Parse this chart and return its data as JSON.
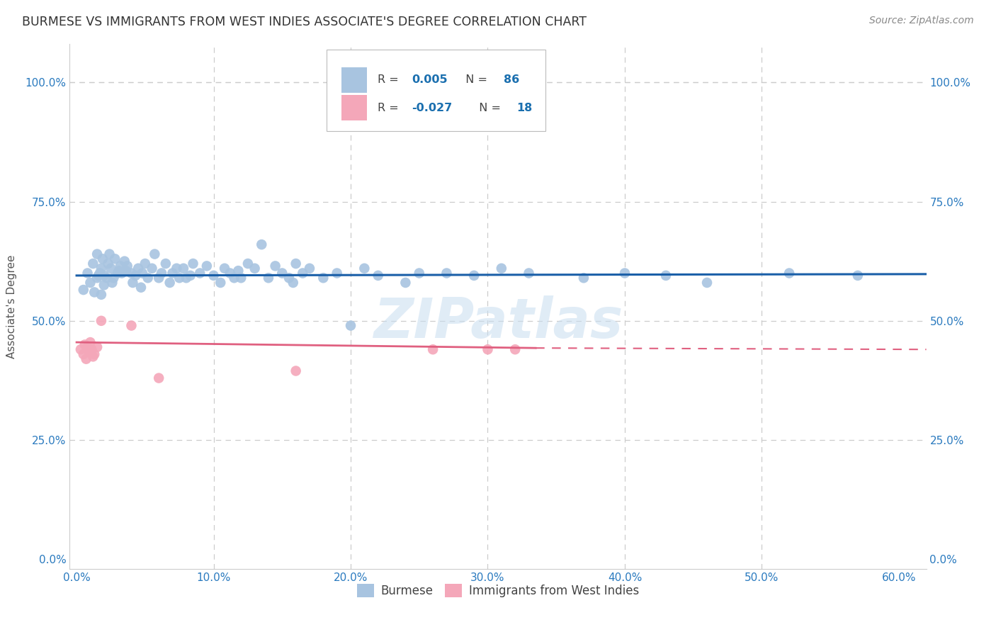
{
  "title": "BURMESE VS IMMIGRANTS FROM WEST INDIES ASSOCIATE'S DEGREE CORRELATION CHART",
  "source": "Source: ZipAtlas.com",
  "xlabel_ticks": [
    "0.0%",
    "10.0%",
    "20.0%",
    "30.0%",
    "40.0%",
    "50.0%",
    "60.0%"
  ],
  "xlabel_vals": [
    0.0,
    0.1,
    0.2,
    0.3,
    0.4,
    0.5,
    0.6
  ],
  "ylabel_ticks": [
    "0.0%",
    "25.0%",
    "50.0%",
    "75.0%",
    "100.0%"
  ],
  "ylabel_vals": [
    0.0,
    0.25,
    0.5,
    0.75,
    1.0
  ],
  "xlim": [
    -0.005,
    0.62
  ],
  "ylim": [
    -0.02,
    1.08
  ],
  "legend_r_blue": "0.005",
  "legend_n_blue": "86",
  "legend_r_pink": "-0.027",
  "legend_n_pink": "18",
  "blue_color": "#a8c4e0",
  "pink_color": "#f4a7b9",
  "line_blue": "#1a5fa8",
  "line_pink": "#e06080",
  "watermark": "ZIPatlas",
  "blue_line_y": 0.595,
  "pink_line_start_y": 0.455,
  "pink_line_end_y": 0.44,
  "blue_scatter_x": [
    0.005,
    0.008,
    0.01,
    0.012,
    0.013,
    0.015,
    0.015,
    0.016,
    0.017,
    0.018,
    0.018,
    0.019,
    0.02,
    0.02,
    0.022,
    0.023,
    0.024,
    0.025,
    0.026,
    0.027,
    0.028,
    0.03,
    0.031,
    0.032,
    0.033,
    0.035,
    0.036,
    0.037,
    0.04,
    0.041,
    0.043,
    0.045,
    0.047,
    0.048,
    0.05,
    0.052,
    0.055,
    0.057,
    0.06,
    0.062,
    0.065,
    0.068,
    0.07,
    0.073,
    0.075,
    0.078,
    0.08,
    0.083,
    0.085,
    0.09,
    0.095,
    0.1,
    0.105,
    0.108,
    0.112,
    0.115,
    0.118,
    0.12,
    0.125,
    0.13,
    0.135,
    0.14,
    0.145,
    0.15,
    0.155,
    0.158,
    0.16,
    0.165,
    0.17,
    0.18,
    0.19,
    0.2,
    0.21,
    0.22,
    0.24,
    0.25,
    0.27,
    0.29,
    0.31,
    0.33,
    0.37,
    0.4,
    0.43,
    0.46,
    0.52,
    0.57
  ],
  "blue_scatter_y": [
    0.565,
    0.6,
    0.58,
    0.62,
    0.56,
    0.59,
    0.64,
    0.595,
    0.6,
    0.555,
    0.61,
    0.63,
    0.575,
    0.595,
    0.59,
    0.62,
    0.64,
    0.61,
    0.58,
    0.59,
    0.63,
    0.6,
    0.605,
    0.615,
    0.6,
    0.625,
    0.605,
    0.615,
    0.6,
    0.58,
    0.595,
    0.61,
    0.57,
    0.6,
    0.62,
    0.59,
    0.61,
    0.64,
    0.59,
    0.6,
    0.62,
    0.58,
    0.6,
    0.61,
    0.59,
    0.61,
    0.59,
    0.595,
    0.62,
    0.6,
    0.615,
    0.595,
    0.58,
    0.61,
    0.6,
    0.59,
    0.605,
    0.59,
    0.62,
    0.61,
    0.66,
    0.59,
    0.615,
    0.6,
    0.59,
    0.58,
    0.62,
    0.6,
    0.61,
    0.59,
    0.6,
    0.49,
    0.61,
    0.595,
    0.58,
    0.6,
    0.6,
    0.595,
    0.61,
    0.6,
    0.59,
    0.6,
    0.595,
    0.58,
    0.6,
    0.595
  ],
  "pink_scatter_x": [
    0.003,
    0.005,
    0.006,
    0.007,
    0.008,
    0.009,
    0.01,
    0.011,
    0.012,
    0.013,
    0.015,
    0.018,
    0.04,
    0.06,
    0.16,
    0.26,
    0.3,
    0.32
  ],
  "pink_scatter_y": [
    0.44,
    0.43,
    0.45,
    0.42,
    0.445,
    0.435,
    0.455,
    0.44,
    0.425,
    0.43,
    0.445,
    0.5,
    0.49,
    0.38,
    0.395,
    0.44,
    0.44,
    0.44
  ]
}
